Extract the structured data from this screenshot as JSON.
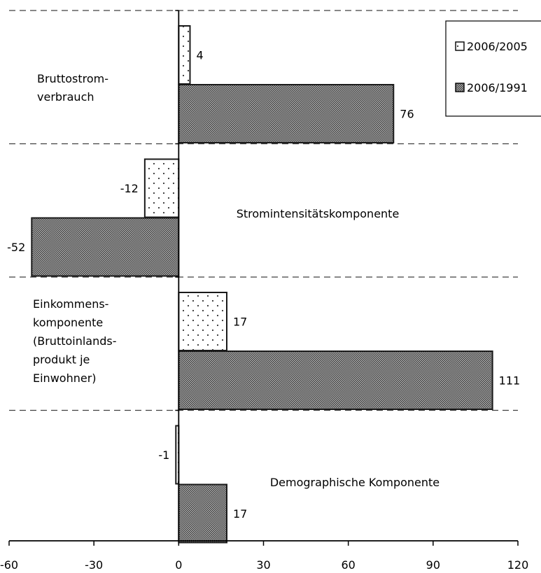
{
  "chart_data": {
    "type": "bar",
    "orientation": "horizontal",
    "xlim": [
      -60,
      120
    ],
    "x_ticks": [
      -60,
      -30,
      0,
      30,
      60,
      90,
      120
    ],
    "grid": false,
    "legend_position": "top-right",
    "categories": [
      {
        "lines": [
          "Bruttostrom-",
          "verbrauch"
        ]
      },
      {
        "lines": [
          "Stromintensitätskomponente"
        ]
      },
      {
        "lines": [
          "Einkommens-",
          "komponente",
          "(Bruttoinlands-",
          "produkt je",
          "Einwohner)"
        ]
      },
      {
        "lines": [
          "Demographische Komponente"
        ]
      }
    ],
    "series": [
      {
        "name": "2006/2005",
        "pattern": "dots",
        "values": [
          4,
          -12,
          17,
          -1
        ]
      },
      {
        "name": "2006/1991",
        "pattern": "crosshatch",
        "values": [
          76,
          -52,
          111,
          17
        ]
      }
    ],
    "value_labels": [
      [
        "4",
        "-12",
        "17",
        "-1"
      ],
      [
        "76",
        "-52",
        "111",
        "17"
      ]
    ],
    "colors": {
      "bar_stroke": "#1a1a1a",
      "crosshatch_fill": "#6e6e6e",
      "dots_fill": "#ffffff",
      "separator": "#404040"
    }
  }
}
